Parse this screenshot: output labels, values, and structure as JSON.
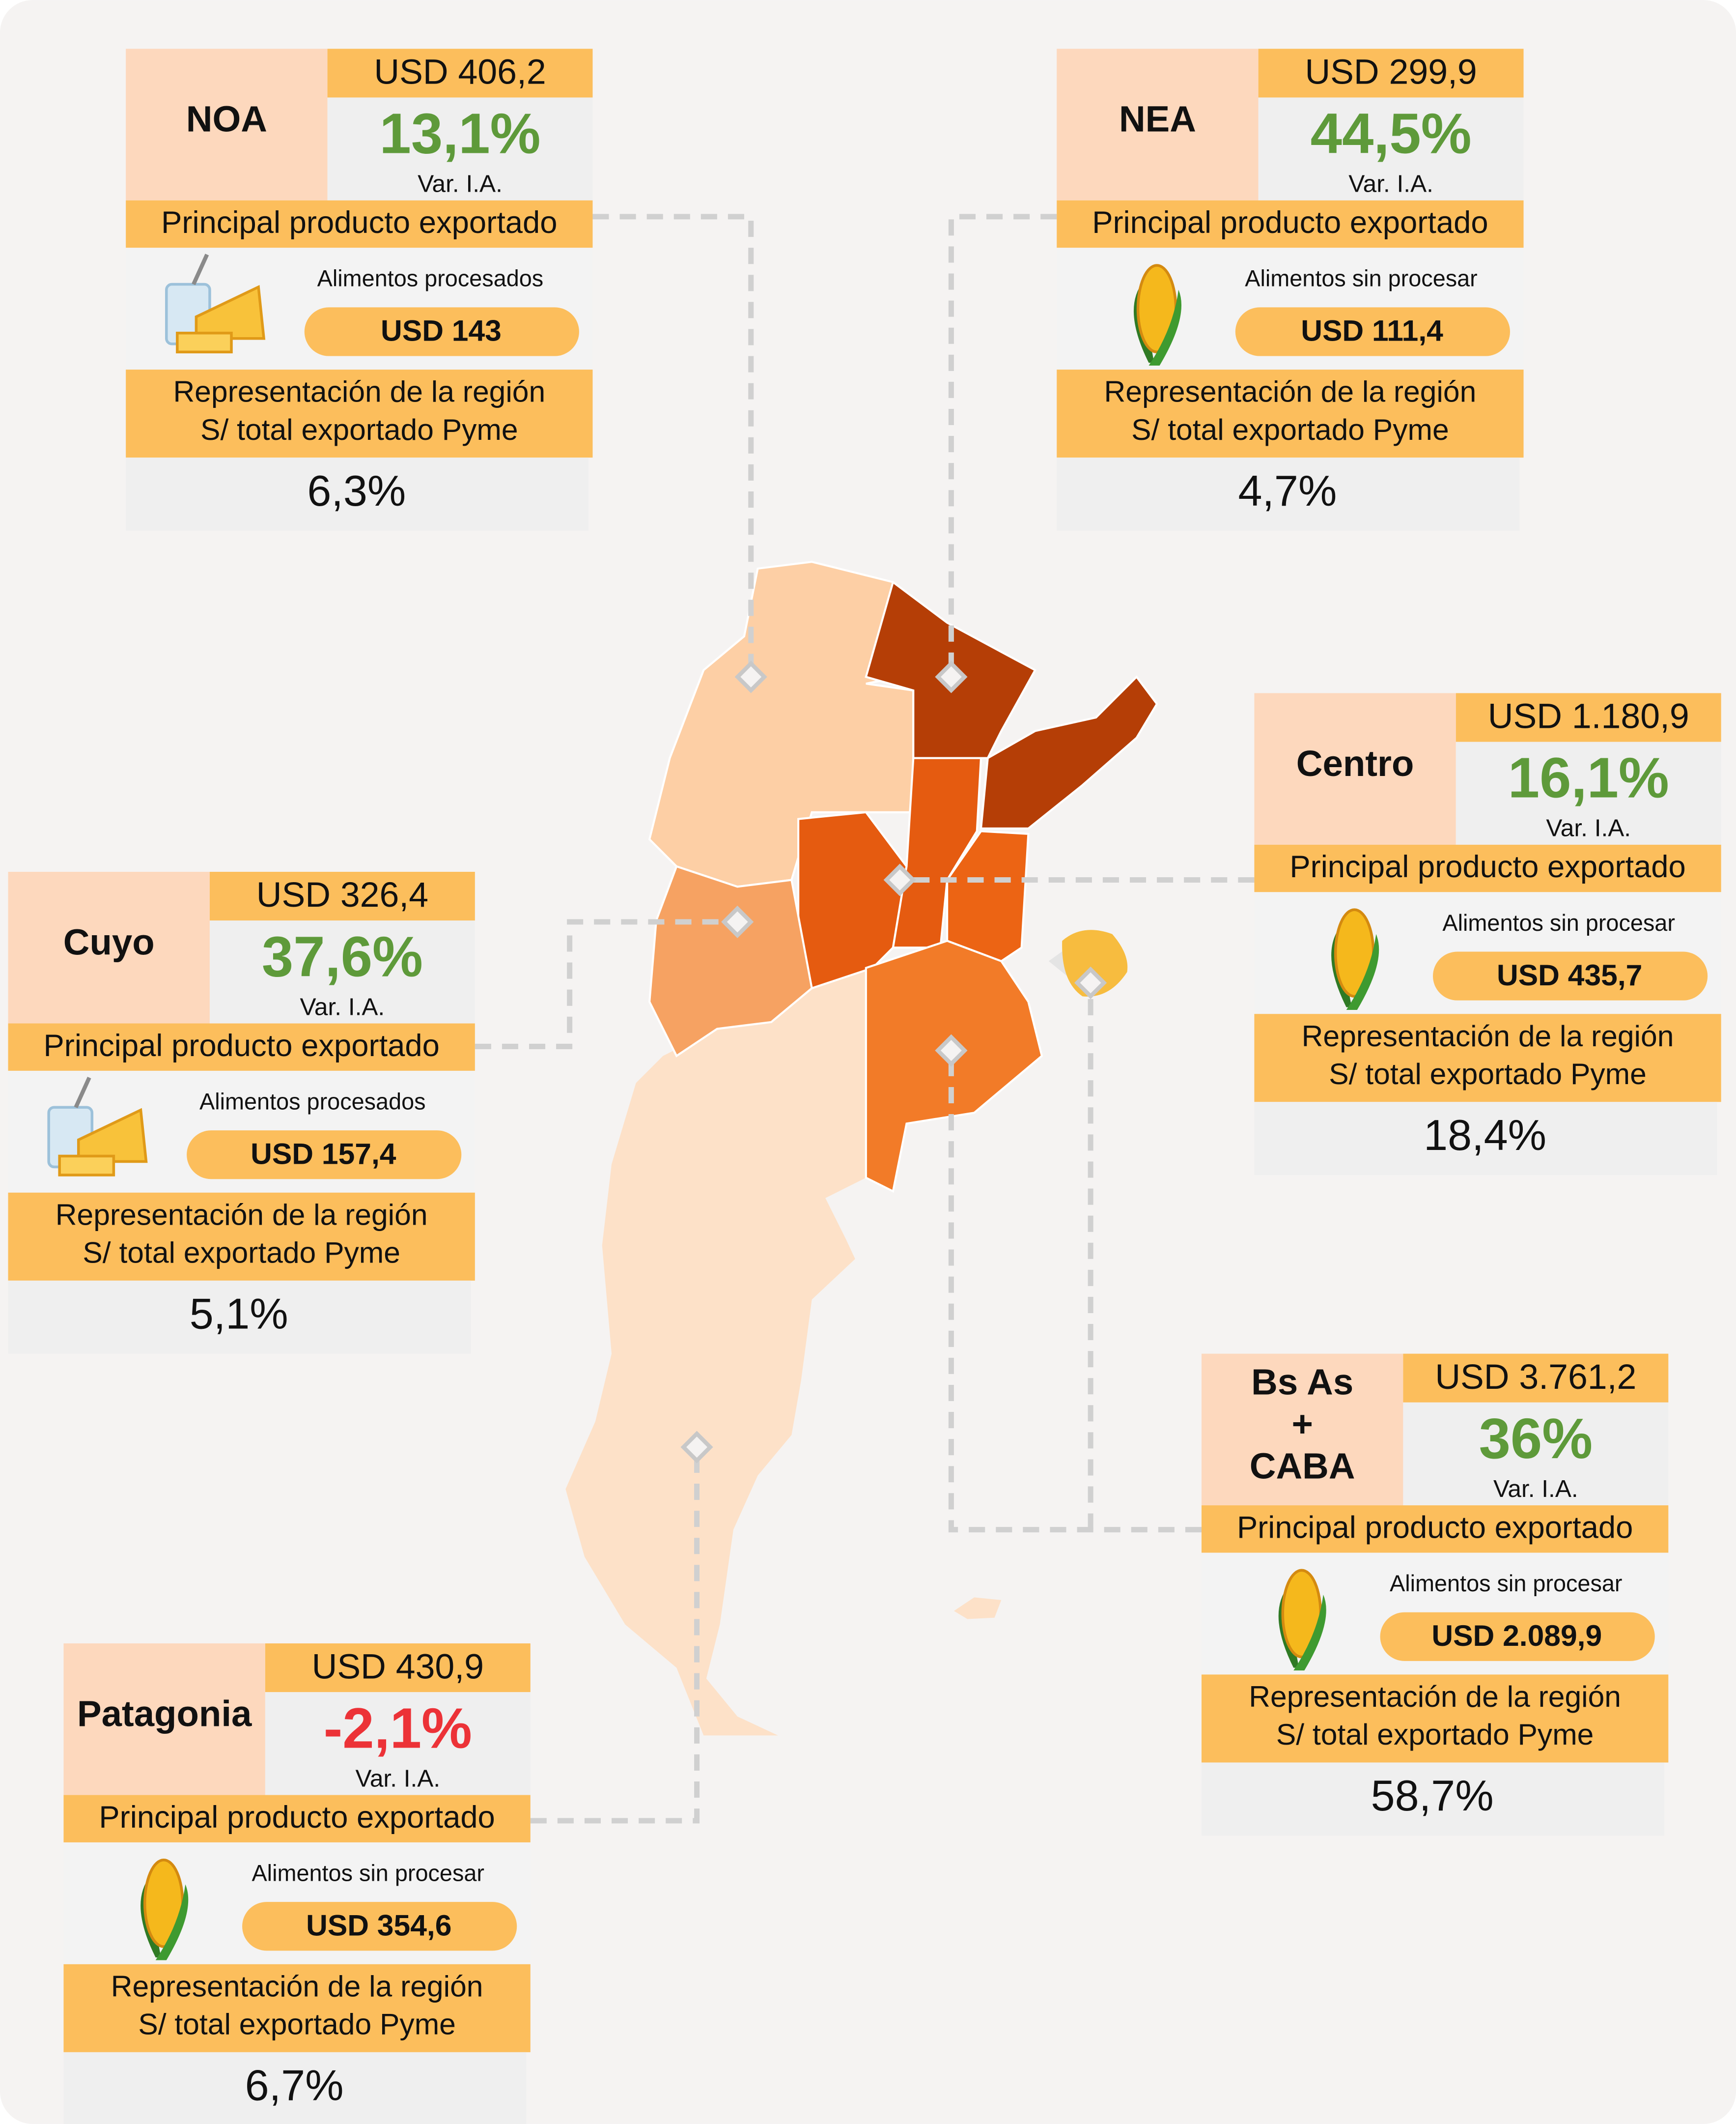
{
  "var_label": "Var. I.A.",
  "principal_label": "Principal producto exportado",
  "representation_label": [
    "Representación de la región",
    "S/ total exportado Pyme"
  ],
  "positive_color": "#5e9a3a",
  "negative_color": "#ec3237",
  "regions": [
    {
      "name": [
        "NOA"
      ],
      "total": "USD 406,2",
      "var": "13,1%",
      "product": "Alimentos procesados",
      "product_value": "USD 143",
      "share": "6,3%"
    },
    {
      "name": [
        "NEA"
      ],
      "total": "USD 299,9",
      "var": "44,5%",
      "product": "Alimentos sin procesar",
      "product_value": "USD 111,4",
      "share": "4,7%"
    },
    {
      "name": [
        "Centro"
      ],
      "total": "USD 1.180,9",
      "var": "16,1%",
      "product": "Alimentos sin procesar",
      "product_value": "USD 435,7",
      "share": "18,4%"
    },
    {
      "name": [
        "Cuyo"
      ],
      "total": "USD 326,4",
      "var": "37,6%",
      "product": "Alimentos procesados",
      "product_value": "USD 157,4",
      "share": "5,1%"
    },
    {
      "name": [
        "Bs As",
        "+",
        "CABA"
      ],
      "total": "USD 3.761,2",
      "var": "36%",
      "product": "Alimentos sin procesar",
      "product_value": "USD 2.089,9",
      "share": "58,7%"
    },
    {
      "name": [
        "Patagonia"
      ],
      "total": "USD 430,9",
      "var": "-2,1%",
      "product": "Alimentos sin procesar",
      "product_value": "USD 354,6",
      "share": "6,7%"
    }
  ]
}
